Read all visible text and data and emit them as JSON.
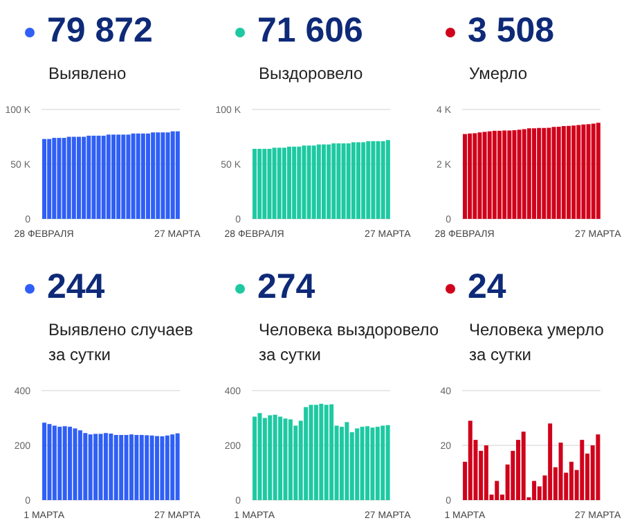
{
  "chart_data": [
    {
      "type": "bar",
      "title": "79 872",
      "subtitle": "Выявлено",
      "color": "#2f5ff5",
      "grid": "y",
      "categories": [
        "28 ФЕВРАЛЯ",
        null,
        null,
        null,
        null,
        null,
        null,
        null,
        null,
        null,
        null,
        null,
        null,
        null,
        null,
        null,
        null,
        null,
        null,
        null,
        null,
        null,
        null,
        null,
        null,
        null,
        null,
        "27 МАРТА"
      ],
      "values": [
        73000,
        73000,
        74000,
        74000,
        74000,
        75000,
        75000,
        75000,
        75000,
        76000,
        76000,
        76000,
        76000,
        77000,
        77000,
        77000,
        77000,
        77000,
        78000,
        78000,
        78000,
        78000,
        79000,
        79000,
        79000,
        79000,
        80000,
        80000
      ],
      "ylim": [
        0,
        100000
      ],
      "yticks": [
        0,
        {
          "value": 50000,
          "label": "50 K"
        },
        {
          "value": 100000,
          "label": "100 K"
        }
      ]
    },
    {
      "type": "bar",
      "title": "71 606",
      "subtitle": "Выздоровело",
      "color": "#1ec9a2",
      "grid": "y",
      "categories": [
        "28 ФЕВРАЛЯ",
        null,
        null,
        null,
        null,
        null,
        null,
        null,
        null,
        null,
        null,
        null,
        null,
        null,
        null,
        null,
        null,
        null,
        null,
        null,
        null,
        null,
        null,
        null,
        null,
        null,
        null,
        "27 МАРТА"
      ],
      "values": [
        64000,
        64000,
        64000,
        64000,
        65000,
        65000,
        65000,
        66000,
        66000,
        66000,
        67000,
        67000,
        67000,
        68000,
        68000,
        68000,
        69000,
        69000,
        69000,
        69000,
        70000,
        70000,
        70000,
        71000,
        71000,
        71000,
        71000,
        72000
      ],
      "ylim": [
        0,
        100000
      ],
      "yticks": [
        0,
        {
          "value": 50000,
          "label": "50 K"
        },
        {
          "value": 100000,
          "label": "100 K"
        }
      ]
    },
    {
      "type": "bar",
      "title": "3 508",
      "subtitle": "Умерло",
      "color": "#d0021b",
      "grid": "y",
      "categories": [
        "28 ФЕВРАЛЯ",
        null,
        null,
        null,
        null,
        null,
        null,
        null,
        null,
        null,
        null,
        null,
        null,
        null,
        null,
        null,
        null,
        null,
        null,
        null,
        null,
        null,
        null,
        null,
        null,
        null,
        null,
        "27 МАРТА"
      ],
      "values": [
        3100,
        3120,
        3130,
        3160,
        3180,
        3200,
        3220,
        3220,
        3230,
        3230,
        3240,
        3260,
        3280,
        3310,
        3310,
        3320,
        3320,
        3330,
        3360,
        3370,
        3390,
        3400,
        3410,
        3430,
        3450,
        3460,
        3480,
        3510
      ],
      "ylim": [
        0,
        4000
      ],
      "yticks": [
        0,
        {
          "value": 2000,
          "label": "2 K"
        },
        {
          "value": 4000,
          "label": "4 K"
        }
      ]
    },
    {
      "type": "bar",
      "title": "244",
      "subtitle": "Выявлено случаев\nза сутки",
      "color": "#2f5ff5",
      "grid": "y",
      "categories": [
        "1 МАРТА",
        null,
        null,
        null,
        null,
        null,
        null,
        null,
        null,
        null,
        null,
        null,
        null,
        null,
        null,
        null,
        null,
        null,
        null,
        null,
        null,
        null,
        null,
        null,
        null,
        null,
        "27 МАРТА"
      ],
      "values": [
        283,
        278,
        272,
        268,
        270,
        268,
        262,
        255,
        245,
        240,
        242,
        242,
        245,
        243,
        238,
        238,
        238,
        240,
        238,
        238,
        237,
        236,
        234,
        233,
        236,
        240,
        244
      ],
      "ylim": [
        0,
        400
      ],
      "yticks": [
        0,
        200,
        400
      ]
    },
    {
      "type": "bar",
      "title": "274",
      "subtitle": "Человека выздоровело\nза сутки",
      "color": "#1ec9a2",
      "grid": "y",
      "categories": [
        "1 МАРТА",
        null,
        null,
        null,
        null,
        null,
        null,
        null,
        null,
        null,
        null,
        null,
        null,
        null,
        null,
        null,
        null,
        null,
        null,
        null,
        null,
        null,
        null,
        null,
        null,
        null,
        "27 МАРТА"
      ],
      "values": [
        305,
        318,
        300,
        310,
        312,
        305,
        298,
        295,
        272,
        290,
        340,
        348,
        348,
        352,
        348,
        350,
        272,
        268,
        285,
        248,
        262,
        268,
        270,
        265,
        268,
        272,
        274
      ],
      "ylim": [
        0,
        400
      ],
      "yticks": [
        0,
        200,
        400
      ]
    },
    {
      "type": "bar",
      "title": "24",
      "subtitle": "Человека умерло\nза сутки",
      "color": "#d0021b",
      "grid": "y",
      "categories": [
        "1 МАРТА",
        null,
        null,
        null,
        null,
        null,
        null,
        null,
        null,
        null,
        null,
        null,
        null,
        null,
        null,
        null,
        null,
        null,
        null,
        null,
        null,
        null,
        null,
        null,
        null,
        "27 МАРТА"
      ],
      "values": [
        14,
        29,
        22,
        18,
        20,
        2,
        7,
        2,
        13,
        18,
        22,
        25,
        1,
        7,
        5,
        9,
        28,
        12,
        21,
        10,
        14,
        11,
        22,
        17,
        20,
        24
      ],
      "ylim": [
        0,
        40
      ],
      "yticks": [
        0,
        20,
        40
      ]
    }
  ]
}
